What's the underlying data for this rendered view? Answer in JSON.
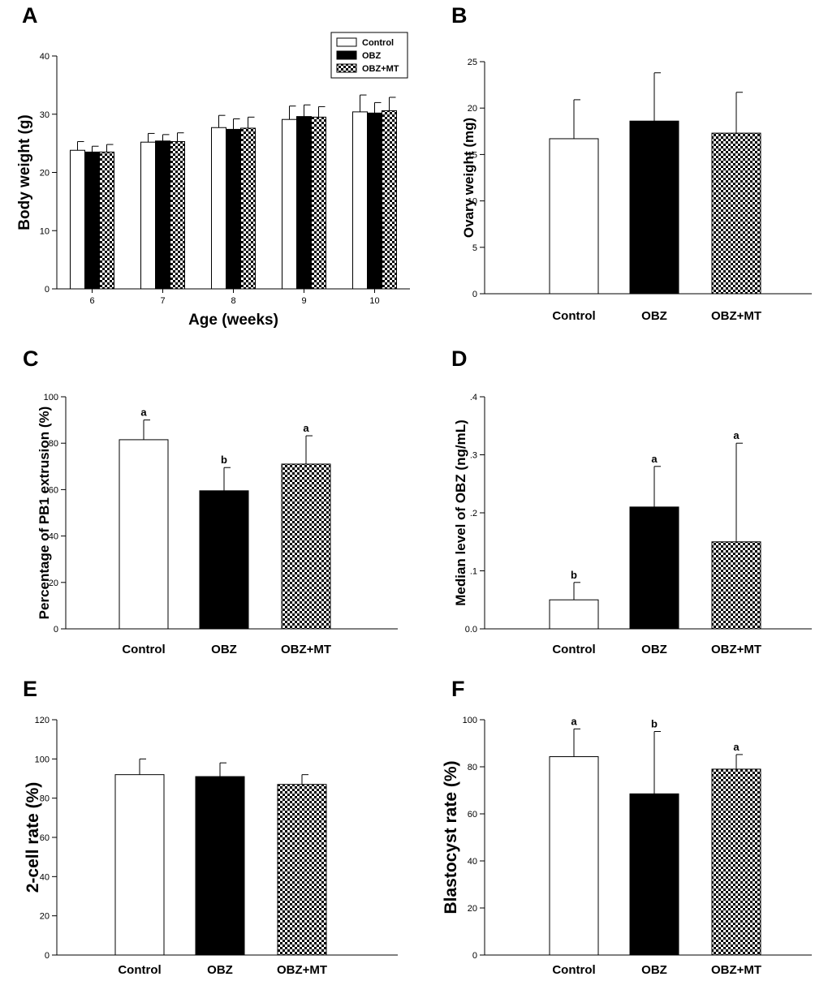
{
  "colors": {
    "Control": "#ffffff",
    "OBZ": "#000000",
    "OBZ+MT": "checker"
  },
  "chart_data": [
    {
      "id": "A",
      "type": "bar",
      "panel_letter": "A",
      "title": "",
      "xlabel": "Age (weeks)",
      "ylabel": "Body weight (g)",
      "ylim": [
        0,
        40
      ],
      "yticks": [
        0,
        10,
        20,
        30,
        40
      ],
      "yticklabels": [
        "0",
        "10",
        "20",
        "30",
        "40"
      ],
      "categories": [
        "6",
        "7",
        "8",
        "9",
        "10"
      ],
      "legend": [
        "Control",
        "OBZ",
        "OBZ+MT"
      ],
      "legend_position": "top-right",
      "series": [
        {
          "name": "Control",
          "values": [
            23.8,
            25.2,
            27.7,
            29.1,
            30.4
          ],
          "errors": [
            1.5,
            1.5,
            2.1,
            2.3,
            2.9
          ]
        },
        {
          "name": "OBZ",
          "values": [
            23.5,
            25.4,
            27.4,
            29.6,
            30.2
          ],
          "errors": [
            1.0,
            1.1,
            1.8,
            2.0,
            1.8
          ]
        },
        {
          "name": "OBZ+MT",
          "values": [
            23.5,
            25.3,
            27.6,
            29.5,
            30.6
          ],
          "errors": [
            1.3,
            1.5,
            1.9,
            1.8,
            2.3
          ]
        }
      ]
    },
    {
      "id": "B",
      "type": "bar",
      "panel_letter": "B",
      "title": "",
      "xlabel": "",
      "ylabel": "Ovary weight (mg)",
      "ylim": [
        0,
        25
      ],
      "yticks": [
        0,
        5,
        10,
        15,
        20,
        25
      ],
      "yticklabels": [
        "0",
        "5",
        "10",
        "15",
        "20",
        "25"
      ],
      "categories": [
        "Control",
        "OBZ",
        "OBZ+MT"
      ],
      "values": [
        16.7,
        18.6,
        17.3
      ],
      "errors": [
        4.2,
        5.2,
        4.4
      ],
      "significance": [
        "",
        "",
        ""
      ]
    },
    {
      "id": "C",
      "type": "bar",
      "panel_letter": "C",
      "title": "",
      "xlabel": "",
      "ylabel": "Percentage of PB1 extrusion (%)",
      "ylim": [
        0,
        100
      ],
      "yticks": [
        0,
        20,
        40,
        60,
        80,
        100
      ],
      "yticklabels": [
        "0",
        "20",
        "40",
        "60",
        "80",
        "100"
      ],
      "categories": [
        "Control",
        "OBZ",
        "OBZ+MT"
      ],
      "values": [
        81.5,
        59.5,
        71.0
      ],
      "errors": [
        8.5,
        10.0,
        12.2
      ],
      "significance": [
        "a",
        "b",
        "a"
      ]
    },
    {
      "id": "D",
      "type": "bar",
      "panel_letter": "D",
      "title": "",
      "xlabel": "",
      "ylabel": "Median level of OBZ (ng/mL)",
      "ylim": [
        0,
        0.4
      ],
      "yticks": [
        0,
        0.1,
        0.2,
        0.3,
        0.4
      ],
      "yticklabels": [
        "0.0",
        ".1",
        ".2",
        ".3",
        ".4"
      ],
      "categories": [
        "Control",
        "OBZ",
        "OBZ+MT"
      ],
      "values": [
        0.05,
        0.21,
        0.15
      ],
      "errors": [
        0.03,
        0.07,
        0.17
      ],
      "significance": [
        "b",
        "a",
        "a"
      ]
    },
    {
      "id": "E",
      "type": "bar",
      "panel_letter": "E",
      "title": "",
      "xlabel": "",
      "ylabel": "2-cell rate (%)",
      "ylim": [
        0,
        120
      ],
      "yticks": [
        0,
        20,
        40,
        60,
        80,
        100,
        120
      ],
      "yticklabels": [
        "0",
        "20",
        "40",
        "60",
        "80",
        "100",
        "120"
      ],
      "categories": [
        "Control",
        "OBZ",
        "OBZ+MT"
      ],
      "values": [
        92,
        91,
        87
      ],
      "errors": [
        8,
        7,
        5
      ],
      "significance": [
        "",
        "",
        ""
      ]
    },
    {
      "id": "F",
      "type": "bar",
      "panel_letter": "F",
      "title": "",
      "xlabel": "",
      "ylabel": "Blastocyst rate (%)",
      "ylim": [
        0,
        100
      ],
      "yticks": [
        0,
        20,
        40,
        60,
        80,
        100
      ],
      "yticklabels": [
        "0",
        "20",
        "40",
        "60",
        "80",
        "100"
      ],
      "categories": [
        "Control",
        "OBZ",
        "OBZ+MT"
      ],
      "values": [
        84.3,
        68.5,
        79.0
      ],
      "errors": [
        11.8,
        26.5,
        6.2
      ],
      "significance": [
        "a",
        "b",
        "a"
      ]
    }
  ]
}
